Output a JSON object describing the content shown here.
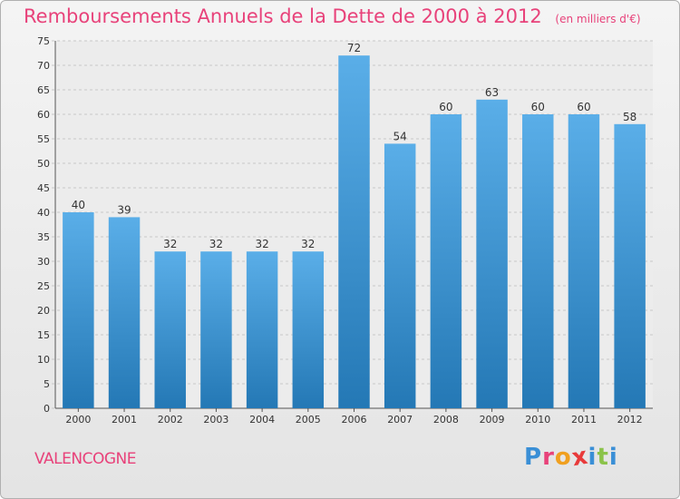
{
  "chart_data": {
    "type": "bar",
    "title": "Remboursements Annuels de la Dette de 2000 à 2012",
    "subtitle": "(en milliers d'€)",
    "categories": [
      "2000",
      "2001",
      "2002",
      "2003",
      "2004",
      "2005",
      "2006",
      "2007",
      "2008",
      "2009",
      "2010",
      "2011",
      "2012"
    ],
    "values": [
      40,
      39,
      32,
      32,
      32,
      32,
      72,
      54,
      60,
      63,
      60,
      60,
      58
    ],
    "ylim": [
      0,
      75
    ],
    "yticks": [
      0,
      5,
      10,
      15,
      20,
      25,
      30,
      35,
      40,
      45,
      50,
      55,
      60,
      65,
      70,
      75
    ],
    "grid": true,
    "colors": {
      "bar_top": "#5aaee8",
      "bar_bottom": "#2478b5",
      "title": "#e8427a",
      "grid": "#c8c8c8"
    }
  },
  "footer": {
    "commune": "VALENCOGNE",
    "logo_letters": [
      "P",
      "r",
      "o",
      "x",
      "i",
      "t",
      "i"
    ],
    "logo_colors": [
      "#3a8fd6",
      "#e8427a",
      "#f0a020",
      "#e83a3a",
      "#3a8fd6",
      "#8bc34a",
      "#3a8fd6"
    ]
  }
}
